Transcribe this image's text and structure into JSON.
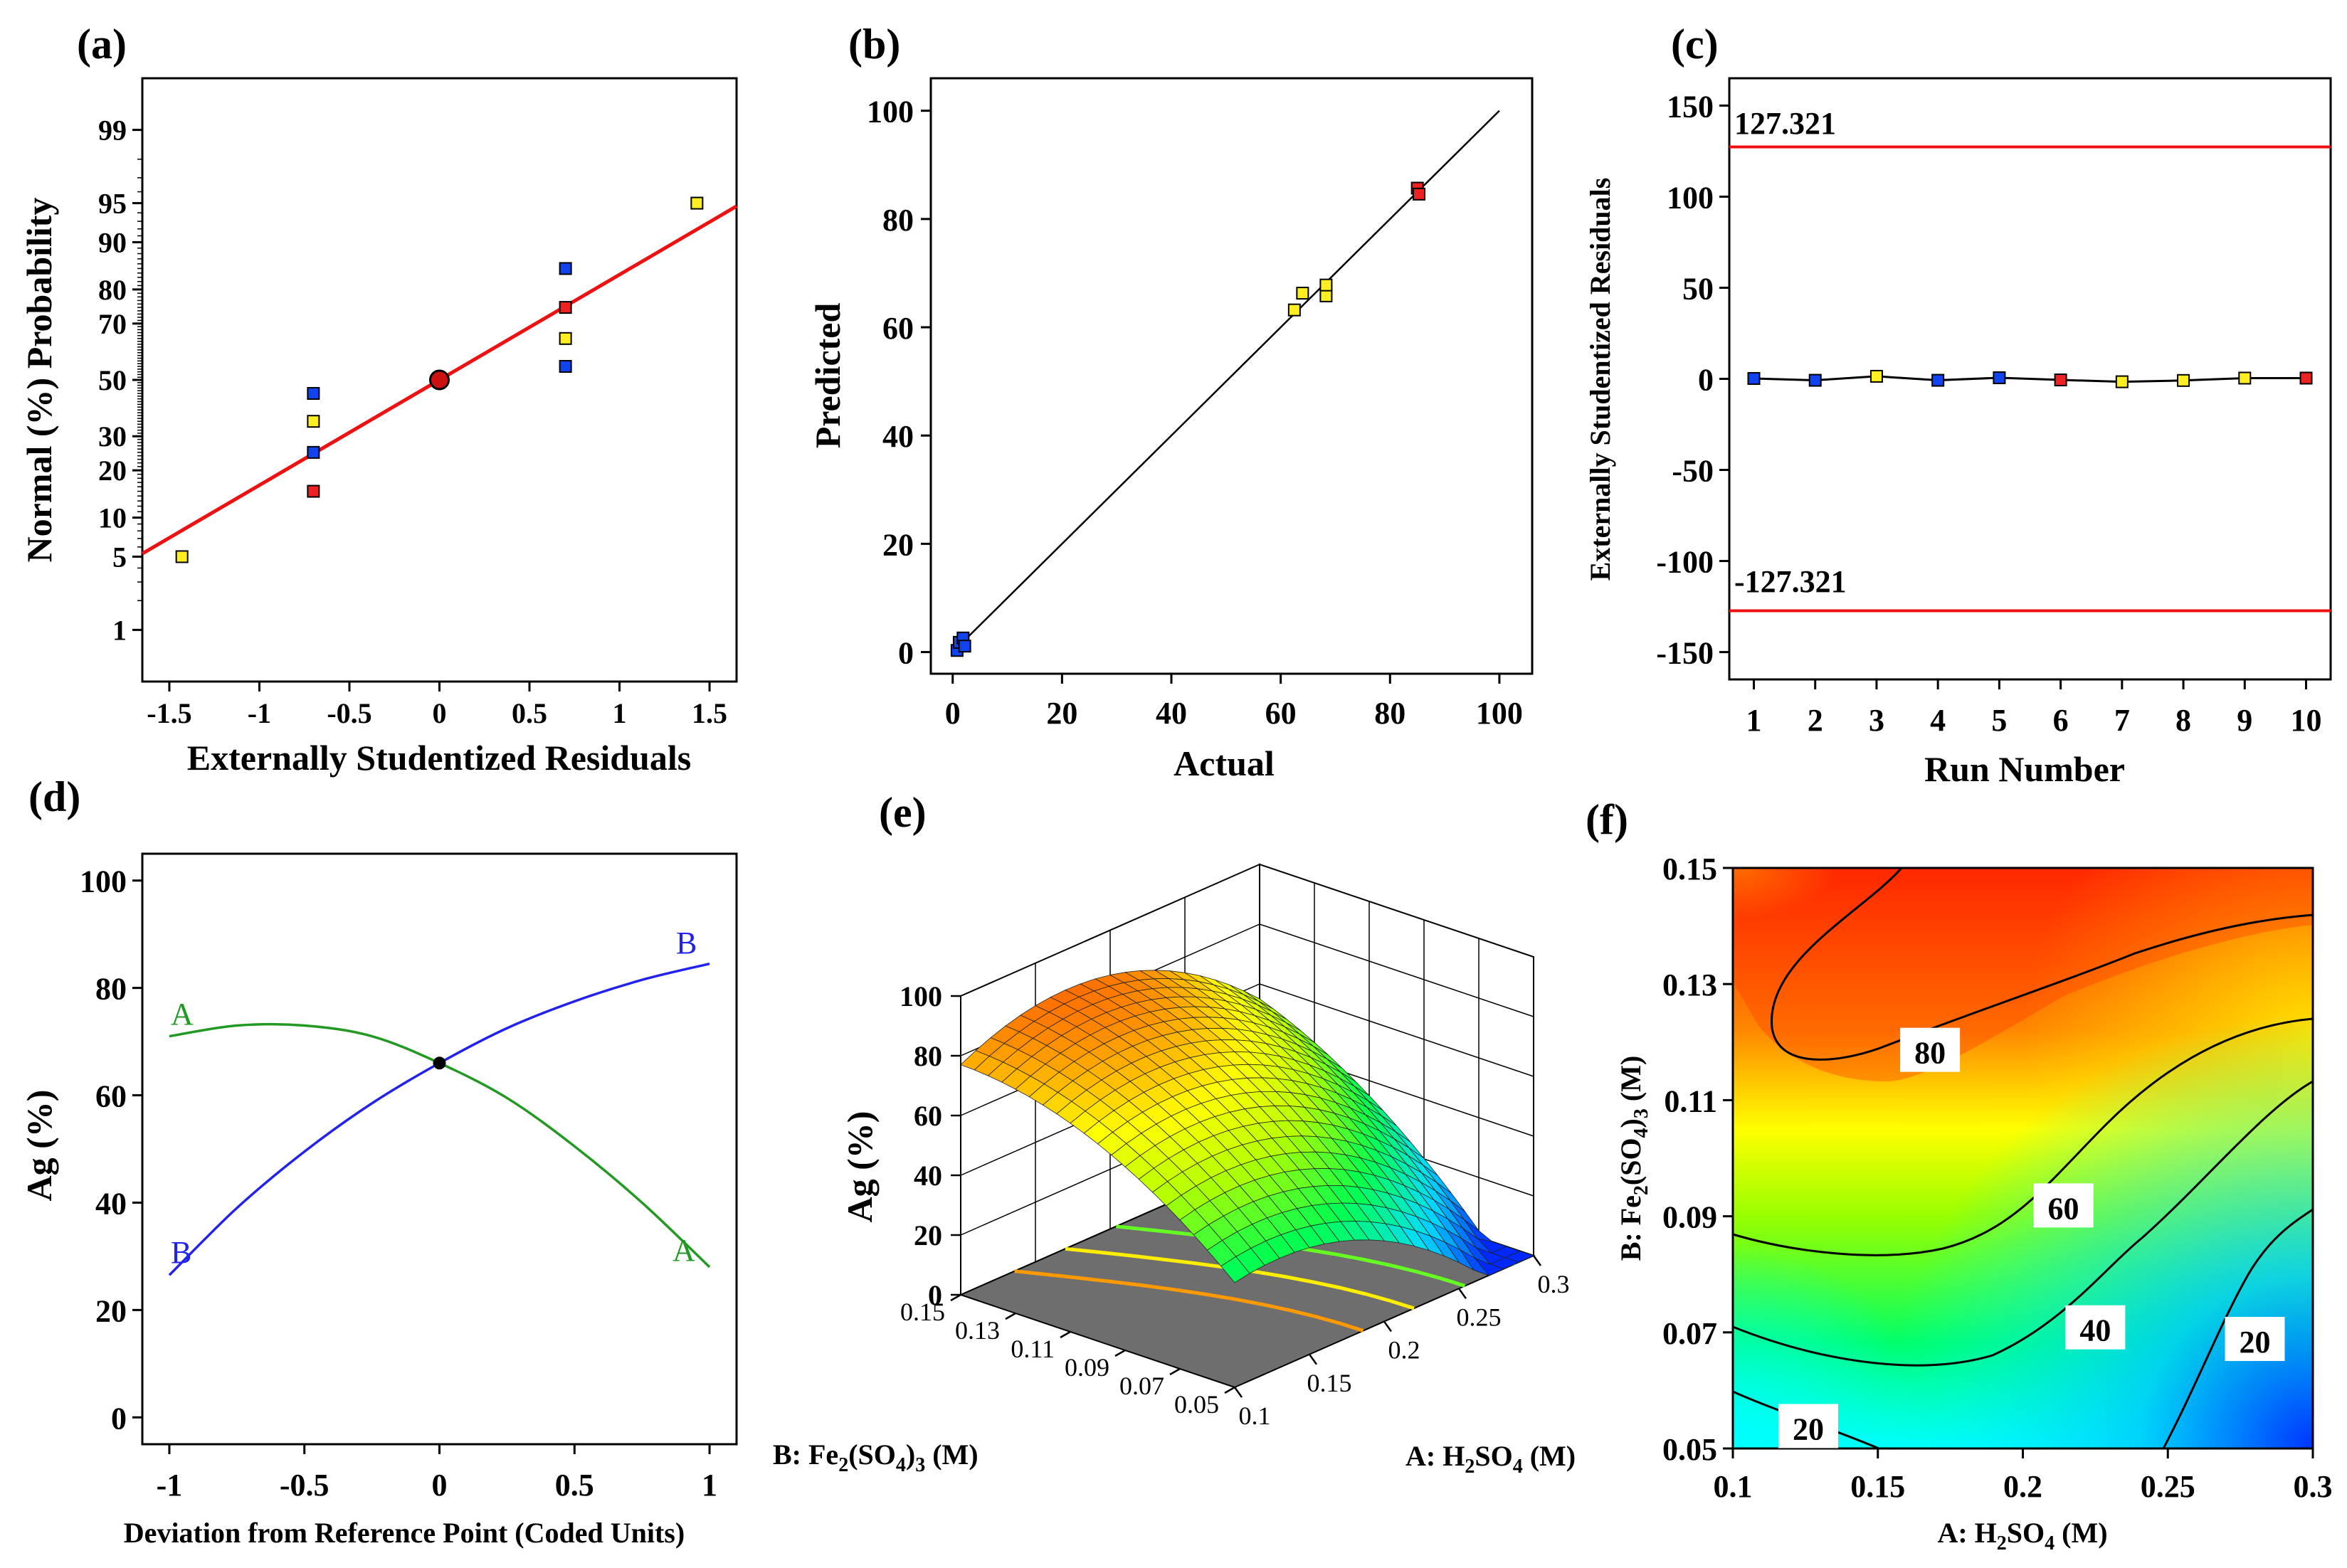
{
  "chart_data": [
    {
      "panel": "(a)",
      "type": "scatter",
      "title": "",
      "xlabel": "Externally Studentized Residuals",
      "ylabel": "Normal (%) Probability",
      "xlim": [
        -1.65,
        1.65
      ],
      "x_ticks": [
        -1.5,
        -1,
        -0.5,
        0,
        0.5,
        1,
        1.5
      ],
      "x_tick_labels": [
        "-1.5",
        "-1",
        "-0.5",
        "0",
        "0.5",
        "1",
        "1.5"
      ],
      "y_scale": "normal-probability",
      "y_ticks": [
        1,
        5,
        10,
        20,
        30,
        50,
        70,
        80,
        90,
        95,
        99
      ],
      "y_tick_labels": [
        "1",
        "5",
        "10",
        "20",
        "30",
        "50",
        "70",
        "80",
        "90",
        "95",
        "99"
      ],
      "fit_line": {
        "color": "#ee1111",
        "from": [
          -1.65,
          5.3
        ],
        "to": [
          1.65,
          94.7
        ]
      },
      "center_point": {
        "x": 0,
        "y": 50,
        "color": "#cc1111"
      },
      "points": [
        {
          "x": -1.43,
          "y": 5,
          "color": "#ffee22"
        },
        {
          "x": -0.7,
          "y": 15,
          "color": "#ee2222"
        },
        {
          "x": -0.7,
          "y": 25,
          "color": "#1144ee"
        },
        {
          "x": -0.7,
          "y": 35,
          "color": "#ffee22"
        },
        {
          "x": -0.7,
          "y": 45,
          "color": "#1144ee"
        },
        {
          "x": 0.7,
          "y": 55,
          "color": "#1144ee"
        },
        {
          "x": 0.7,
          "y": 65,
          "color": "#ffee22"
        },
        {
          "x": 0.7,
          "y": 75,
          "color": "#ee2222"
        },
        {
          "x": 0.7,
          "y": 85,
          "color": "#1144ee"
        },
        {
          "x": 1.43,
          "y": 95,
          "color": "#ffee22"
        }
      ]
    },
    {
      "panel": "(b)",
      "type": "scatter",
      "title": "",
      "xlabel": "Actual",
      "ylabel": "Predicted",
      "xlim": [
        -4,
        106
      ],
      "ylim": [
        -4,
        106
      ],
      "x_ticks": [
        0,
        20,
        40,
        60,
        80,
        100
      ],
      "y_ticks": [
        0,
        20,
        40,
        60,
        80,
        100
      ],
      "fit_line": {
        "from": [
          0,
          0
        ],
        "to": [
          100,
          100
        ],
        "color": "#000000"
      },
      "points": [
        {
          "x": 0.8,
          "y": 0.3,
          "color": "#1144ee"
        },
        {
          "x": 1.2,
          "y": 1.8,
          "color": "#1144ee"
        },
        {
          "x": 1.9,
          "y": 2.6,
          "color": "#1144ee"
        },
        {
          "x": 2.2,
          "y": 1.1,
          "color": "#1144ee"
        },
        {
          "x": 62.5,
          "y": 63.2,
          "color": "#ffee22"
        },
        {
          "x": 64.0,
          "y": 66.3,
          "color": "#ffee22"
        },
        {
          "x": 68.3,
          "y": 65.8,
          "color": "#ffee22"
        },
        {
          "x": 68.3,
          "y": 67.8,
          "color": "#ffee22"
        },
        {
          "x": 85.0,
          "y": 85.7,
          "color": "#ee2222"
        },
        {
          "x": 85.3,
          "y": 84.6,
          "color": "#ee2222"
        }
      ]
    },
    {
      "panel": "(c)",
      "type": "line",
      "title": "",
      "xlabel": "Run Number",
      "ylabel": "Externally Studentized Residuals",
      "xlim": [
        0.6,
        10.4
      ],
      "ylim": [
        -165,
        165
      ],
      "x_ticks": [
        1,
        2,
        3,
        4,
        5,
        6,
        7,
        8,
        9,
        10
      ],
      "y_ticks": [
        -150,
        -100,
        -50,
        0,
        50,
        100,
        150
      ],
      "limit_lines": [
        {
          "value": 127.321,
          "label": "127.321",
          "color": "#ee1111"
        },
        {
          "value": -127.321,
          "label": "-127.321",
          "color": "#ee1111"
        }
      ],
      "points": [
        {
          "x": 1,
          "y": 0.2,
          "color": "#1144ee"
        },
        {
          "x": 2,
          "y": -0.8,
          "color": "#1144ee"
        },
        {
          "x": 3,
          "y": 1.4,
          "color": "#ffee22"
        },
        {
          "x": 4,
          "y": -0.8,
          "color": "#1144ee"
        },
        {
          "x": 5,
          "y": 0.6,
          "color": "#1144ee"
        },
        {
          "x": 6,
          "y": -0.6,
          "color": "#ee2222"
        },
        {
          "x": 7,
          "y": -1.6,
          "color": "#ffee22"
        },
        {
          "x": 8,
          "y": -0.9,
          "color": "#ffee22"
        },
        {
          "x": 9,
          "y": 0.4,
          "color": "#ffee22"
        },
        {
          "x": 10,
          "y": 0.4,
          "color": "#ee2222"
        }
      ]
    },
    {
      "panel": "(d)",
      "type": "line",
      "title": "",
      "xlabel": "Deviation from Reference Point (Coded Units)",
      "ylabel": "Ag (%)",
      "xlim": [
        -1.1,
        1.1
      ],
      "ylim": [
        -5,
        105
      ],
      "x_ticks": [
        -1,
        -0.5,
        0,
        0.5,
        1
      ],
      "x_tick_labels": [
        "-1",
        "-0.5",
        "0",
        "0.5",
        "1"
      ],
      "y_ticks": [
        0,
        20,
        40,
        60,
        80,
        100
      ],
      "reference_point": {
        "x": 0,
        "y": 66
      },
      "series": [
        {
          "name": "A",
          "color": "#229922",
          "x": [
            -1,
            -0.75,
            -0.5,
            -0.25,
            0,
            0.25,
            0.5,
            0.75,
            1
          ],
          "values": [
            71,
            73,
            73,
            71,
            66,
            59.5,
            50.5,
            40,
            28
          ]
        },
        {
          "name": "B",
          "color": "#2222ee",
          "x": [
            -1,
            -0.75,
            -0.5,
            -0.25,
            0,
            0.25,
            0.5,
            0.75,
            1
          ],
          "values": [
            26.5,
            39,
            49.5,
            58.5,
            66,
            72.5,
            77.5,
            81.5,
            84.5
          ]
        }
      ]
    },
    {
      "panel": "(e)",
      "type": "surface3d",
      "title": "",
      "zlabel": "Ag (%)",
      "xlabel": "A: H2SO4 (M)",
      "ylabel": "B: Fe2(SO4)3 (M)",
      "x_ticks": [
        "0.1",
        "0.15",
        "0.2",
        "0.25",
        "0.3"
      ],
      "y_ticks": [
        "0.05",
        "0.07",
        "0.09",
        "0.11",
        "0.13",
        "0.15"
      ],
      "z_ticks": [
        "0",
        "20",
        "40",
        "60",
        "80",
        "100"
      ],
      "xlim": [
        0.1,
        0.3
      ],
      "ylim": [
        0.05,
        0.15
      ],
      "zlim": [
        0,
        100
      ]
    },
    {
      "panel": "(f)",
      "type": "contour",
      "title": "",
      "xlabel": "A: H2SO4 (M)",
      "ylabel": "B: Fe2(SO4)3 (M)",
      "xlim": [
        0.1,
        0.3
      ],
      "ylim": [
        0.05,
        0.15
      ],
      "x_ticks": [
        "0.1",
        "0.15",
        "0.2",
        "0.25",
        "0.3"
      ],
      "y_ticks": [
        "0.05",
        "0.07",
        "0.09",
        "0.11",
        "0.13",
        "0.15"
      ],
      "contour_labels": [
        {
          "label": "80",
          "x": 0.168,
          "y": 0.1183
        },
        {
          "label": "60",
          "x": 0.214,
          "y": 0.0915
        },
        {
          "label": "40",
          "x": 0.225,
          "y": 0.0705
        },
        {
          "label": "20",
          "x": 0.28,
          "y": 0.0685
        },
        {
          "label": "20",
          "x": 0.126,
          "y": 0.0535
        }
      ]
    }
  ],
  "labels": {
    "a": "(a)",
    "b": "(b)",
    "c": "(c)",
    "d": "(d)",
    "e": "(e)",
    "f": "(f)",
    "a_x": "Externally Studentized Residuals",
    "a_y": "Normal (%) Probability",
    "b_x": "Actual",
    "b_y": "Predicted",
    "c_x": "Run Number",
    "c_y": "Externally Studentized Residuals",
    "c_upper": "127.321",
    "c_lower": "-127.321",
    "d_x": "Deviation from Reference Point (Coded Units)",
    "d_y": "Ag (%)",
    "d_A": "A",
    "d_B": "B",
    "e_z": "Ag (%)",
    "f_y_pre": "B: Fe",
    "f_y_s1": "2",
    "f_y_mid": "(SO",
    "f_y_s2": "4",
    "f_y_s3": "3",
    "f_y_post": " (M)",
    "f_x_pre": "A: H",
    "f_x_s1": "2",
    "f_x_mid": "SO",
    "f_x_s2": "4",
    "f_x_post": " (M)"
  },
  "colors": {
    "red": "#ee2222",
    "yellow": "#ffee22",
    "blue": "#1144ee",
    "fit_red": "#ee1111",
    "green": "#229922",
    "line_blue": "#2222ee"
  }
}
